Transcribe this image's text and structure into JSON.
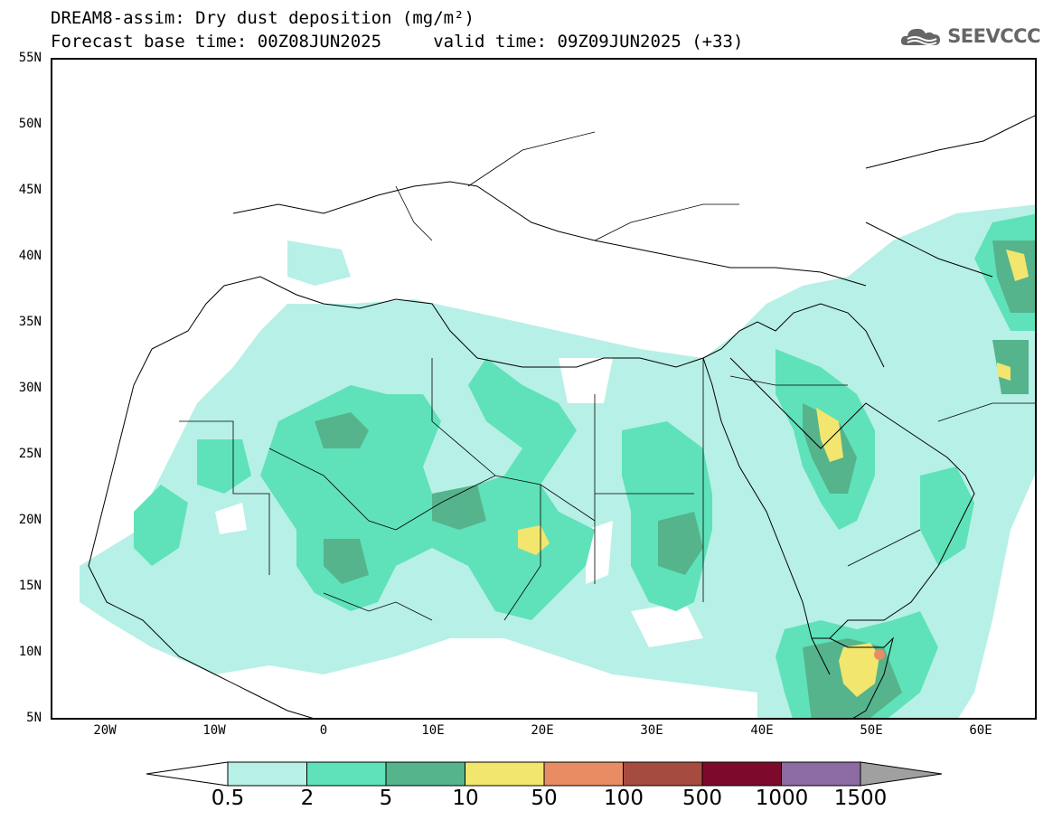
{
  "title": {
    "line1": "DREAM8-assim: Dry dust deposition (mg/m²)",
    "line2": "Forecast base time: 00Z08JUN2025     valid time: 09Z09JUN2025 (+33)"
  },
  "logo": {
    "icon": "cloud-icon",
    "text": "SEEVCCC"
  },
  "axes": {
    "lat_labels": [
      "55N",
      "50N",
      "45N",
      "40N",
      "35N",
      "30N",
      "25N",
      "20N",
      "15N",
      "10N",
      "5N"
    ],
    "lon_labels": [
      "20W",
      "10W",
      "0",
      "10E",
      "20E",
      "30E",
      "40E",
      "50E",
      "60E"
    ],
    "lat_range": [
      5,
      55
    ],
    "lon_range": [
      -25,
      65
    ]
  },
  "colorbar": {
    "labels": [
      "0.5",
      "2",
      "5",
      "10",
      "50",
      "100",
      "500",
      "1000",
      "1500"
    ],
    "colors": [
      "#b7f0e6",
      "#5fe2b9",
      "#55b48c",
      "#f2e66e",
      "#e88c64",
      "#a64b3f",
      "#7d0a2c",
      "#8c6ba2",
      "#a0a0a0"
    ]
  },
  "legend_classes": [
    {
      "name": "0.5-2",
      "color": "#b7f0e6"
    },
    {
      "name": "2-5",
      "color": "#5fe2b9"
    },
    {
      "name": "5-10",
      "color": "#55b48c"
    },
    {
      "name": "10-50",
      "color": "#f2e66e"
    },
    {
      "name": "50-100",
      "color": "#e88c64"
    }
  ]
}
